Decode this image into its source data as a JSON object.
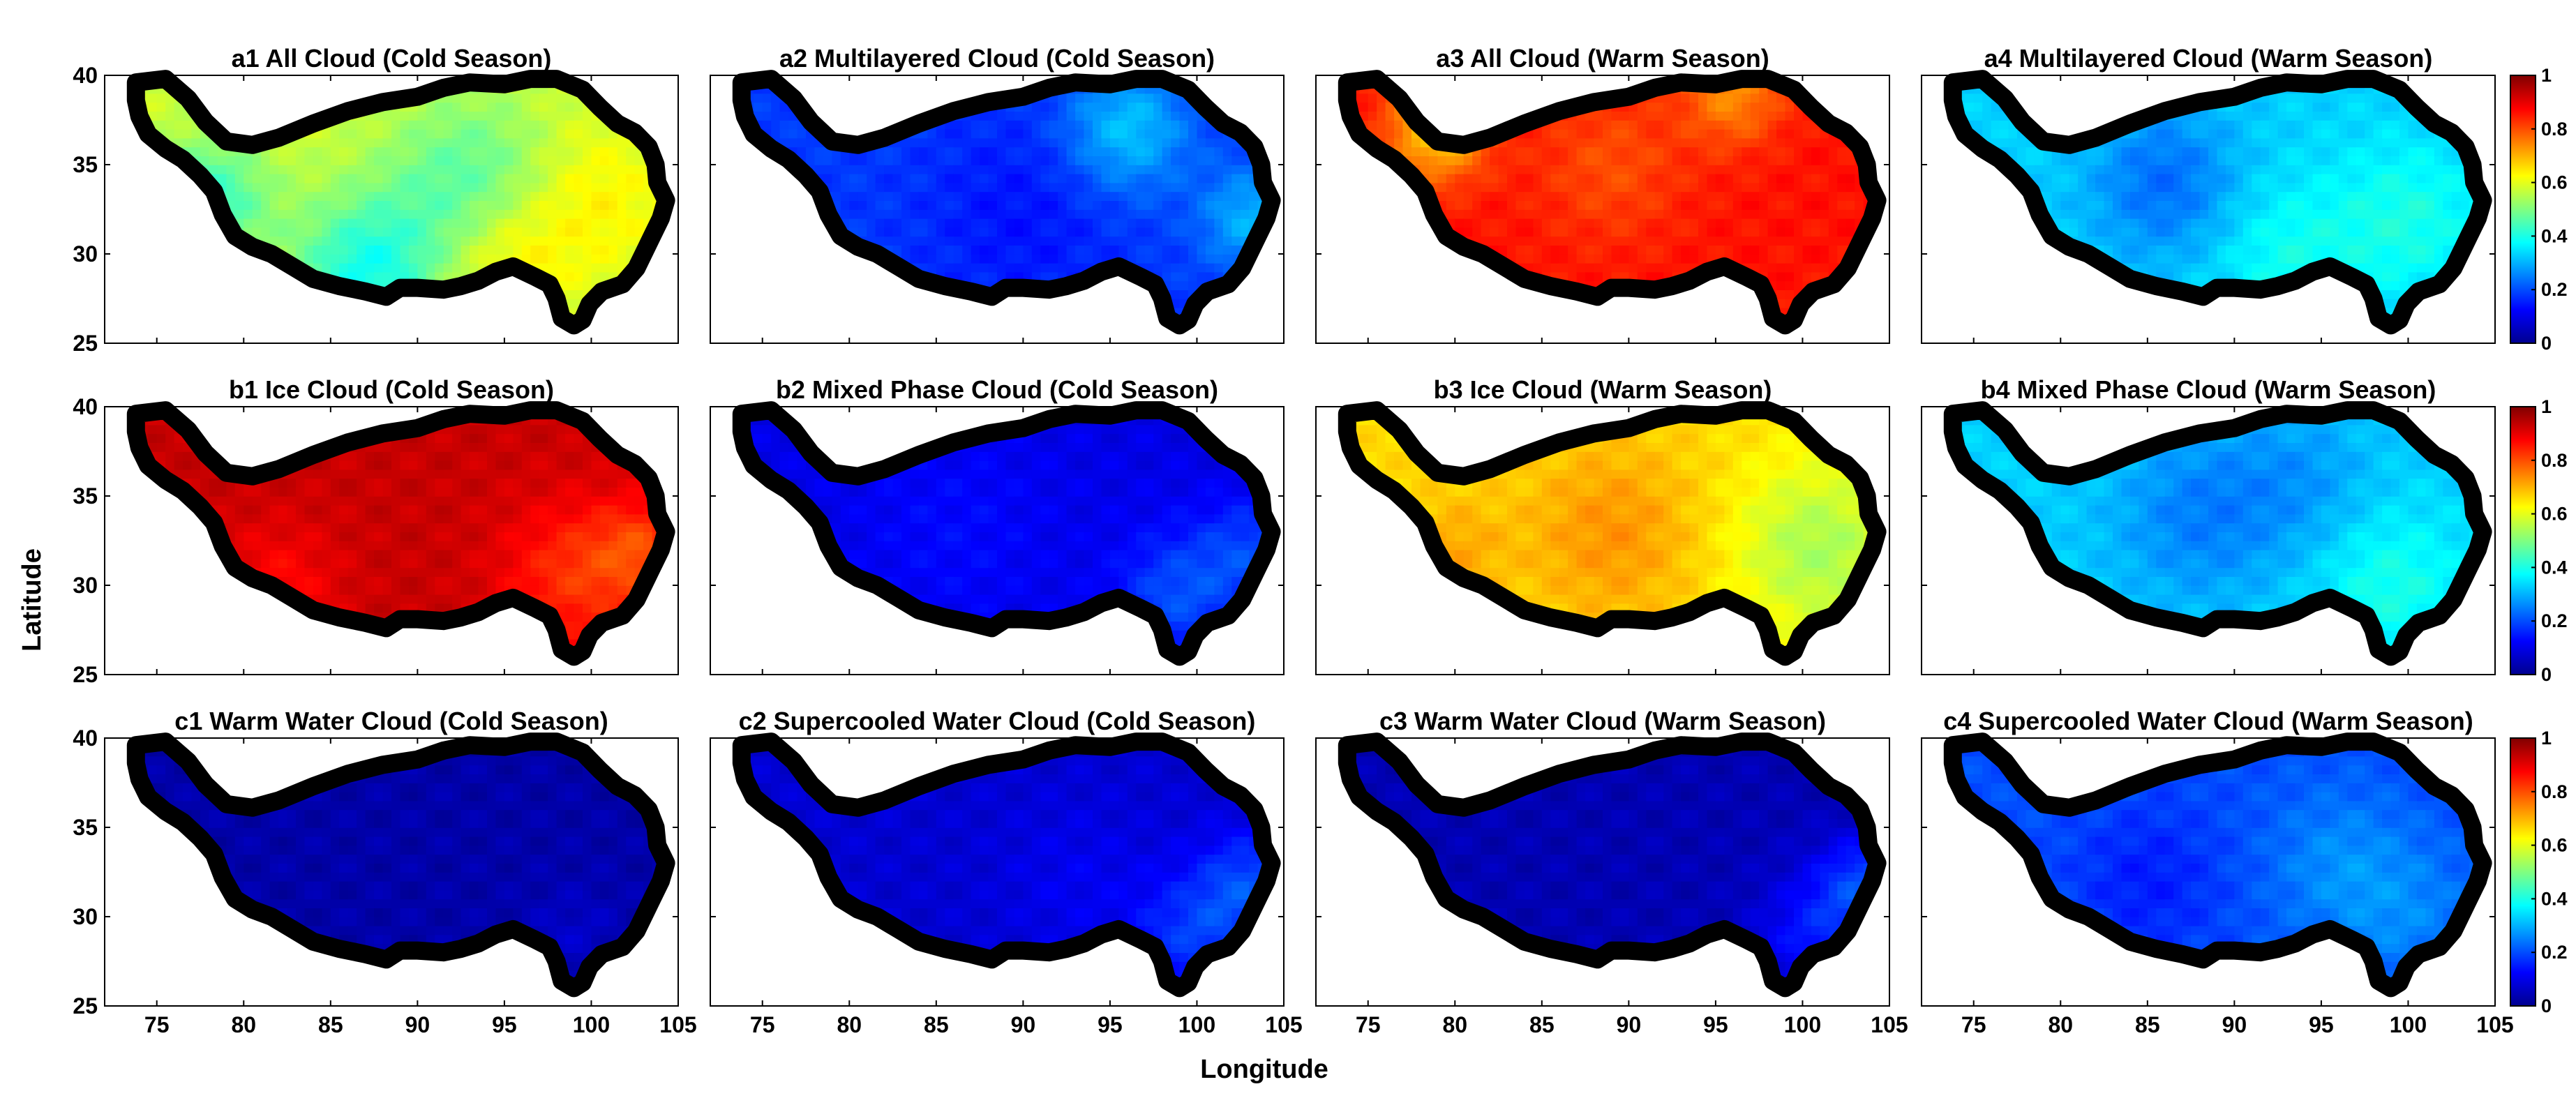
{
  "chart_data": {
    "type": "heatmap",
    "xlabel": "Longitude",
    "ylabel": "Latitude",
    "xlim": [
      72,
      105
    ],
    "ylim": [
      25,
      40
    ],
    "xticks": [
      "75",
      "80",
      "85",
      "90",
      "95",
      "100",
      "105"
    ],
    "yticks": [
      "25",
      "30",
      "35",
      "40"
    ],
    "colorbar": {
      "range": [
        0,
        1
      ],
      "ticks": [
        "0",
        "0.2",
        "0.4",
        "0.6",
        "0.8",
        "1"
      ],
      "colormap": "jet"
    },
    "region_outline": [
      [
        73.8,
        39.6
      ],
      [
        75.5,
        39.8
      ],
      [
        76.8,
        38.7
      ],
      [
        77.8,
        37.4
      ],
      [
        79,
        36.3
      ],
      [
        80.5,
        36.1
      ],
      [
        82,
        36.5
      ],
      [
        84,
        37.3
      ],
      [
        86,
        38
      ],
      [
        88,
        38.5
      ],
      [
        90,
        38.8
      ],
      [
        91.5,
        39.3
      ],
      [
        93,
        39.6
      ],
      [
        95,
        39.5
      ],
      [
        96.5,
        39.8
      ],
      [
        98,
        39.8
      ],
      [
        99.5,
        39.2
      ],
      [
        100.5,
        38.2
      ],
      [
        101.5,
        37.3
      ],
      [
        102.5,
        36.8
      ],
      [
        103.3,
        36
      ],
      [
        103.7,
        35
      ],
      [
        103.8,
        34
      ],
      [
        104.3,
        33
      ],
      [
        104,
        32
      ],
      [
        103.5,
        31
      ],
      [
        103,
        30
      ],
      [
        102.6,
        29.2
      ],
      [
        101.8,
        28.3
      ],
      [
        100.6,
        27.9
      ],
      [
        99.9,
        27.2
      ],
      [
        99.5,
        26.3
      ],
      [
        99,
        26
      ],
      [
        98.3,
        26.4
      ],
      [
        98,
        27.5
      ],
      [
        97.6,
        28.3
      ],
      [
        96.8,
        28.7
      ],
      [
        95.5,
        29.3
      ],
      [
        94.5,
        29
      ],
      [
        93.5,
        28.5
      ],
      [
        92.5,
        28.2
      ],
      [
        91.5,
        28
      ],
      [
        90,
        28.1
      ],
      [
        89,
        28.1
      ],
      [
        88.2,
        27.6
      ],
      [
        87,
        27.9
      ],
      [
        85.5,
        28.2
      ],
      [
        84,
        28.6
      ],
      [
        82.8,
        29.3
      ],
      [
        81.6,
        30
      ],
      [
        80.5,
        30.4
      ],
      [
        79.5,
        31
      ],
      [
        78.8,
        32.2
      ],
      [
        78.3,
        33.5
      ],
      [
        77.5,
        34.4
      ],
      [
        76.5,
        35.3
      ],
      [
        75.5,
        35.9
      ],
      [
        74.5,
        36.7
      ],
      [
        74,
        37.7
      ],
      [
        73.8,
        38.6
      ]
    ],
    "panels": [
      {
        "id": "a1",
        "title": "a1 All Cloud (Cold Season)",
        "base": 0.58,
        "hotspots": [
          [
            93,
            34,
            3.5,
            -0.12
          ],
          [
            78,
            33,
            2.5,
            -0.15
          ],
          [
            87,
            29,
            3,
            -0.18
          ],
          [
            95,
            30,
            2.5,
            0.08
          ],
          [
            100,
            33,
            3,
            0.06
          ]
        ]
      },
      {
        "id": "a2",
        "title": "a2 Multilayered Cloud (Cold Season)",
        "base": 0.18,
        "hotspots": [
          [
            96,
            37,
            2.5,
            0.14
          ],
          [
            103,
            32,
            2,
            0.12
          ],
          [
            90,
            32,
            4,
            -0.04
          ]
        ]
      },
      {
        "id": "a3",
        "title": "a3 All Cloud (Warm Season)",
        "base": 0.86,
        "hotspots": [
          [
            96,
            39,
            2,
            -0.12
          ],
          [
            79,
            37,
            2,
            -0.2
          ],
          [
            89,
            35,
            3,
            -0.06
          ]
        ]
      },
      {
        "id": "a4",
        "title": "a4 Multilayered Cloud (Warm Season)",
        "base": 0.33,
        "hotspots": [
          [
            86,
            34,
            3,
            -0.1
          ],
          [
            100,
            32,
            3,
            0.07
          ],
          [
            93,
            30,
            3,
            0.06
          ]
        ]
      },
      {
        "id": "b1",
        "title": "b1 Ice Cloud (Cold Season)",
        "base": 0.93,
        "hotspots": [
          [
            99,
            30.5,
            3,
            -0.1
          ],
          [
            103,
            32,
            2,
            -0.1
          ],
          [
            82,
            30,
            2.5,
            -0.06
          ]
        ]
      },
      {
        "id": "b2",
        "title": "b2 Mixed Phase Cloud (Cold Season)",
        "base": 0.1,
        "hotspots": [
          [
            99,
            29.5,
            2.5,
            0.1
          ],
          [
            103,
            32,
            2,
            0.08
          ],
          [
            86,
            33,
            4,
            0.03
          ]
        ]
      },
      {
        "id": "b3",
        "title": "b3 Ice Cloud (Warm Season)",
        "base": 0.66,
        "hotspots": [
          [
            101,
            32,
            3.5,
            -0.12
          ],
          [
            89,
            33,
            3.5,
            0.07
          ],
          [
            80,
            32,
            2,
            0.05
          ]
        ]
      },
      {
        "id": "b4",
        "title": "b4 Mixed Phase Cloud (Warm Season)",
        "base": 0.33,
        "hotspots": [
          [
            88,
            34,
            3.5,
            -0.08
          ],
          [
            99,
            30,
            3,
            0.07
          ],
          [
            94,
            36,
            3,
            -0.05
          ]
        ]
      },
      {
        "id": "c1",
        "title": "c1 Warm Water Cloud (Cold Season)",
        "base": 0.04,
        "hotspots": [
          [
            99,
            29,
            2,
            0.03
          ]
        ]
      },
      {
        "id": "c2",
        "title": "c2 Supercooled Water Cloud (Cold Season)",
        "base": 0.08,
        "hotspots": [
          [
            100,
            29,
            2.5,
            0.1
          ],
          [
            103,
            32,
            2,
            0.1
          ],
          [
            93,
            32,
            3,
            0.03
          ]
        ]
      },
      {
        "id": "c3",
        "title": "c3 Warm Water Cloud (Warm Season)",
        "base": 0.05,
        "hotspots": [
          [
            101,
            29,
            2.5,
            0.1
          ],
          [
            103.5,
            32,
            1.8,
            0.12
          ]
        ]
      },
      {
        "id": "c4",
        "title": "c4 Supercooled Water Cloud (Warm Season)",
        "base": 0.2,
        "hotspots": [
          [
            96,
            33,
            3,
            0.06
          ],
          [
            85,
            32,
            3,
            -0.05
          ],
          [
            100,
            30,
            3,
            0.05
          ]
        ]
      }
    ]
  }
}
